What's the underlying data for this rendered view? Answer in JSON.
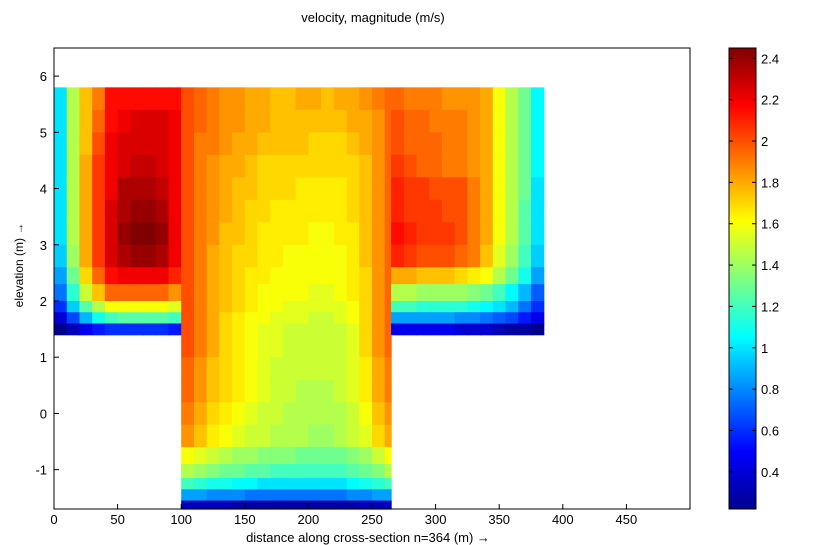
{
  "chart_data": {
    "type": "heatmap",
    "title": "velocity, magnitude (m/s)",
    "xlabel": "distance along cross-section n=364 (m) →",
    "ylabel": "elevation (m) →",
    "xlim": [
      0,
      500
    ],
    "ylim": [
      -1.7,
      6.5
    ],
    "xticks": [
      0,
      50,
      100,
      150,
      200,
      250,
      300,
      350,
      400,
      450
    ],
    "yticks": [
      -1,
      0,
      1,
      2,
      3,
      4,
      5,
      6
    ],
    "colorbar": {
      "colormap": "jet",
      "clim": [
        0.22,
        2.45
      ],
      "ticks": [
        0.4,
        0.6,
        0.8,
        1,
        1.2,
        1.4,
        1.6,
        1.8,
        2,
        2.2,
        2.4
      ]
    },
    "cell_width_m": 10,
    "channel": {
      "left_bank": {
        "x": [
          0,
          100
        ],
        "y": [
          1.4,
          5.8
        ]
      },
      "main": {
        "x": [
          100,
          265
        ],
        "y": [
          -1.7,
          5.8
        ]
      },
      "right_bank": {
        "x": [
          265,
          385
        ],
        "y": [
          1.4,
          5.8
        ]
      }
    },
    "rows": [
      {
        "y": [
          5.4,
          5.8
        ],
        "left": [
          1.0,
          1.45,
          1.75,
          1.9,
          2.15,
          2.15,
          2.15,
          2.15,
          2.15,
          2.15
        ],
        "main": [
          2.0,
          1.95,
          1.9,
          1.85,
          1.85,
          1.8,
          1.8,
          1.75,
          1.75,
          1.8,
          1.8,
          1.75,
          1.8,
          1.8,
          1.85,
          1.9,
          1.95
        ],
        "right": [
          1.95,
          1.9,
          1.9,
          1.9,
          1.85,
          1.85,
          1.85,
          1.8,
          1.6,
          1.45,
          1.3,
          1.05
        ]
      },
      {
        "y": [
          5.0,
          5.4
        ],
        "left": [
          1.0,
          1.45,
          1.75,
          1.95,
          2.15,
          2.2,
          2.25,
          2.25,
          2.25,
          2.2
        ],
        "main": [
          2.0,
          1.95,
          1.9,
          1.85,
          1.85,
          1.8,
          1.8,
          1.75,
          1.75,
          1.75,
          1.75,
          1.75,
          1.75,
          1.8,
          1.8,
          1.85,
          1.95
        ],
        "right": [
          2.0,
          1.95,
          1.95,
          1.9,
          1.9,
          1.9,
          1.85,
          1.8,
          1.6,
          1.45,
          1.3,
          1.05
        ]
      },
      {
        "y": [
          4.6,
          5.0
        ],
        "left": [
          1.0,
          1.45,
          1.75,
          2.0,
          2.2,
          2.25,
          2.25,
          2.25,
          2.25,
          2.2
        ],
        "main": [
          2.0,
          1.9,
          1.9,
          1.85,
          1.8,
          1.8,
          1.75,
          1.75,
          1.75,
          1.75,
          1.7,
          1.7,
          1.7,
          1.75,
          1.8,
          1.85,
          1.95
        ],
        "right": [
          2.0,
          1.95,
          1.95,
          1.95,
          1.9,
          1.9,
          1.85,
          1.8,
          1.6,
          1.45,
          1.3,
          1.05
        ]
      },
      {
        "y": [
          4.2,
          4.6
        ],
        "left": [
          1.0,
          1.45,
          1.8,
          2.05,
          2.2,
          2.25,
          2.3,
          2.3,
          2.25,
          2.2
        ],
        "main": [
          2.0,
          1.9,
          1.85,
          1.8,
          1.8,
          1.75,
          1.7,
          1.7,
          1.7,
          1.7,
          1.7,
          1.7,
          1.7,
          1.7,
          1.75,
          1.85,
          1.95
        ],
        "right": [
          2.05,
          2.0,
          1.95,
          1.95,
          1.9,
          1.9,
          1.85,
          1.8,
          1.6,
          1.45,
          1.3,
          1.05
        ]
      },
      {
        "y": [
          3.8,
          4.2
        ],
        "left": [
          1.0,
          1.45,
          1.8,
          2.05,
          2.2,
          2.35,
          2.35,
          2.35,
          2.3,
          2.2
        ],
        "main": [
          2.0,
          1.9,
          1.85,
          1.8,
          1.75,
          1.75,
          1.7,
          1.7,
          1.7,
          1.65,
          1.65,
          1.65,
          1.65,
          1.7,
          1.75,
          1.85,
          1.95
        ],
        "right": [
          2.1,
          2.05,
          2.05,
          2.0,
          2.0,
          2.0,
          1.9,
          1.8,
          1.6,
          1.45,
          1.3,
          1.0
        ]
      },
      {
        "y": [
          3.4,
          3.8
        ],
        "left": [
          1.0,
          1.45,
          1.8,
          2.05,
          2.25,
          2.35,
          2.4,
          2.4,
          2.35,
          2.2
        ],
        "main": [
          2.0,
          1.9,
          1.85,
          1.8,
          1.75,
          1.7,
          1.7,
          1.65,
          1.65,
          1.65,
          1.65,
          1.65,
          1.65,
          1.7,
          1.75,
          1.85,
          1.95
        ],
        "right": [
          2.1,
          2.05,
          2.05,
          2.05,
          2.0,
          2.0,
          1.9,
          1.8,
          1.6,
          1.45,
          1.25,
          1.0
        ]
      },
      {
        "y": [
          3.0,
          3.4
        ],
        "left": [
          1.0,
          1.45,
          1.8,
          2.05,
          2.25,
          2.4,
          2.45,
          2.45,
          2.4,
          2.2
        ],
        "main": [
          2.0,
          1.9,
          1.85,
          1.75,
          1.75,
          1.7,
          1.65,
          1.65,
          1.65,
          1.65,
          1.6,
          1.6,
          1.65,
          1.65,
          1.75,
          1.85,
          1.95
        ],
        "right": [
          2.15,
          2.1,
          2.05,
          2.05,
          2.05,
          2.0,
          1.9,
          1.8,
          1.6,
          1.45,
          1.25,
          1.0
        ]
      },
      {
        "y": [
          2.6,
          3.0
        ],
        "left": [
          0.95,
          1.4,
          1.8,
          2.05,
          2.25,
          2.35,
          2.4,
          2.4,
          2.35,
          2.2
        ],
        "main": [
          2.0,
          1.9,
          1.8,
          1.75,
          1.7,
          1.7,
          1.65,
          1.65,
          1.6,
          1.6,
          1.6,
          1.6,
          1.6,
          1.65,
          1.75,
          1.85,
          1.95
        ],
        "right": [
          2.1,
          2.05,
          2.0,
          2.0,
          2.0,
          1.95,
          1.9,
          1.75,
          1.55,
          1.4,
          1.2,
          0.95
        ]
      },
      {
        "y": [
          2.3,
          2.6
        ],
        "left": [
          0.85,
          1.3,
          1.7,
          1.95,
          2.15,
          2.2,
          2.2,
          2.2,
          2.2,
          2.1
        ],
        "main": [
          2.0,
          1.9,
          1.8,
          1.75,
          1.7,
          1.65,
          1.65,
          1.6,
          1.6,
          1.6,
          1.6,
          1.6,
          1.6,
          1.65,
          1.7,
          1.85,
          1.95
        ],
        "right": [
          1.8,
          1.8,
          1.75,
          1.75,
          1.75,
          1.7,
          1.65,
          1.6,
          1.45,
          1.3,
          1.1,
          0.85
        ]
      },
      {
        "y": [
          2.0,
          2.3
        ],
        "left": [
          0.75,
          1.15,
          1.5,
          1.75,
          1.95,
          1.95,
          1.95,
          1.95,
          1.95,
          1.85
        ],
        "main": [
          2.0,
          1.9,
          1.8,
          1.75,
          1.7,
          1.65,
          1.6,
          1.6,
          1.6,
          1.6,
          1.55,
          1.55,
          1.6,
          1.65,
          1.7,
          1.85,
          1.95
        ],
        "right": [
          1.45,
          1.45,
          1.4,
          1.4,
          1.4,
          1.4,
          1.35,
          1.3,
          1.2,
          1.05,
          0.9,
          0.7
        ]
      },
      {
        "y": [
          1.8,
          2.0
        ],
        "left": [
          0.6,
          0.95,
          1.25,
          1.45,
          1.6,
          1.6,
          1.6,
          1.6,
          1.6,
          1.55
        ],
        "main": [
          2.0,
          1.9,
          1.8,
          1.75,
          1.7,
          1.65,
          1.6,
          1.6,
          1.55,
          1.55,
          1.55,
          1.55,
          1.55,
          1.6,
          1.7,
          1.85,
          1.95
        ],
        "right": [
          1.2,
          1.2,
          1.15,
          1.15,
          1.15,
          1.15,
          1.1,
          1.05,
          1.0,
          0.9,
          0.75,
          0.6
        ]
      },
      {
        "y": [
          1.6,
          1.8
        ],
        "left": [
          0.4,
          0.65,
          0.9,
          1.1,
          1.2,
          1.25,
          1.25,
          1.25,
          1.25,
          1.2
        ],
        "main": [
          2.0,
          1.9,
          1.8,
          1.7,
          1.65,
          1.6,
          1.6,
          1.55,
          1.55,
          1.55,
          1.5,
          1.5,
          1.55,
          1.6,
          1.7,
          1.85,
          1.95
        ],
        "right": [
          0.85,
          0.85,
          0.85,
          0.85,
          0.85,
          0.8,
          0.8,
          0.75,
          0.7,
          0.65,
          0.55,
          0.45
        ]
      },
      {
        "y": [
          1.4,
          1.6
        ],
        "left": [
          0.25,
          0.35,
          0.45,
          0.55,
          0.6,
          0.6,
          0.6,
          0.6,
          0.6,
          0.55
        ],
        "main": [
          2.0,
          1.9,
          1.8,
          1.7,
          1.65,
          1.6,
          1.55,
          1.55,
          1.5,
          1.5,
          1.5,
          1.5,
          1.5,
          1.55,
          1.7,
          1.85,
          1.95
        ],
        "right": [
          0.45,
          0.45,
          0.45,
          0.45,
          0.45,
          0.4,
          0.4,
          0.4,
          0.35,
          0.3,
          0.3,
          0.25
        ]
      },
      {
        "y": [
          1.0,
          1.4
        ],
        "main": [
          2.0,
          1.9,
          1.8,
          1.7,
          1.65,
          1.6,
          1.55,
          1.55,
          1.5,
          1.5,
          1.5,
          1.5,
          1.5,
          1.55,
          1.7,
          1.85,
          1.95
        ]
      },
      {
        "y": [
          0.6,
          1.0
        ],
        "main": [
          1.95,
          1.85,
          1.75,
          1.7,
          1.65,
          1.6,
          1.55,
          1.5,
          1.5,
          1.5,
          1.5,
          1.5,
          1.5,
          1.55,
          1.65,
          1.8,
          1.9
        ]
      },
      {
        "y": [
          0.2,
          0.6
        ],
        "main": [
          1.95,
          1.85,
          1.75,
          1.7,
          1.65,
          1.6,
          1.55,
          1.5,
          1.5,
          1.45,
          1.45,
          1.45,
          1.5,
          1.55,
          1.65,
          1.8,
          1.9
        ]
      },
      {
        "y": [
          -0.2,
          0.2
        ],
        "main": [
          1.9,
          1.8,
          1.7,
          1.65,
          1.6,
          1.55,
          1.5,
          1.5,
          1.45,
          1.45,
          1.45,
          1.45,
          1.45,
          1.5,
          1.6,
          1.75,
          1.85
        ]
      },
      {
        "y": [
          -0.6,
          -0.2
        ],
        "main": [
          1.85,
          1.75,
          1.65,
          1.6,
          1.55,
          1.5,
          1.5,
          1.45,
          1.45,
          1.45,
          1.4,
          1.4,
          1.45,
          1.5,
          1.55,
          1.7,
          1.8
        ]
      },
      {
        "y": [
          -0.9,
          -0.6
        ],
        "main": [
          1.6,
          1.55,
          1.5,
          1.45,
          1.4,
          1.4,
          1.35,
          1.35,
          1.35,
          1.3,
          1.3,
          1.3,
          1.3,
          1.35,
          1.4,
          1.5,
          1.6
        ]
      },
      {
        "y": [
          -1.15,
          -0.9
        ],
        "main": [
          1.45,
          1.4,
          1.35,
          1.3,
          1.3,
          1.25,
          1.25,
          1.2,
          1.2,
          1.2,
          1.2,
          1.2,
          1.2,
          1.25,
          1.3,
          1.35,
          1.45
        ]
      },
      {
        "y": [
          -1.35,
          -1.15
        ],
        "main": [
          1.2,
          1.15,
          1.1,
          1.1,
          1.05,
          1.05,
          1.0,
          1.0,
          1.0,
          1.0,
          1.0,
          1.0,
          1.0,
          1.05,
          1.1,
          1.15,
          1.2
        ]
      },
      {
        "y": [
          -1.55,
          -1.35
        ],
        "main": [
          0.85,
          0.85,
          0.8,
          0.8,
          0.8,
          0.75,
          0.75,
          0.75,
          0.75,
          0.75,
          0.75,
          0.75,
          0.75,
          0.8,
          0.8,
          0.85,
          0.85
        ]
      },
      {
        "y": [
          -1.7,
          -1.55
        ],
        "main": [
          0.35,
          0.35,
          0.35,
          0.35,
          0.3,
          0.3,
          0.3,
          0.3,
          0.3,
          0.3,
          0.3,
          0.3,
          0.3,
          0.3,
          0.35,
          0.35,
          0.35
        ]
      }
    ]
  }
}
